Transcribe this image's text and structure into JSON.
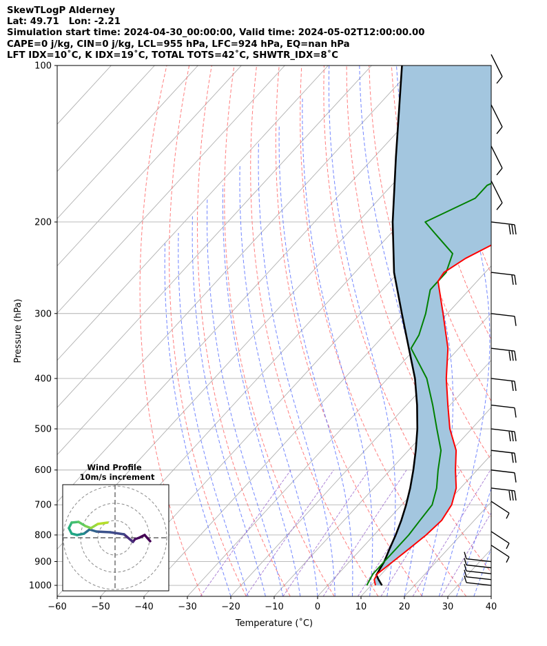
{
  "header": {
    "line1": "SkewTLogP Alderney",
    "line2": "Lat: 49.71   Lon: -2.21",
    "line3": "Simulation start time: 2024-04-30_00:00:00, Valid time: 2024-05-02T12:00:00.00",
    "line4": "CAPE=0 j/kg, CIN=0 j/kg, LCL=955 hPa, LFC=924 hPa, EQ=nan hPa",
    "line5": "LFT IDX=10˚C, K IDX=19˚C, TOTAL TOTS=42˚C, SHWTR_IDX=8˚C"
  },
  "chart_data": {
    "type": "line",
    "title": "SkewTLogP Alderney",
    "xlabel": "Temperature (˚C)",
    "ylabel": "Pressure (hPa)",
    "xlim": [
      -60,
      40
    ],
    "ylim": [
      1050,
      100
    ],
    "y_scale": "log",
    "skew": "skew-T log-P",
    "x_ticks": [
      "−60",
      "−50",
      "−40",
      "−30",
      "−20",
      "−10",
      "0",
      "10",
      "20",
      "30",
      "40"
    ],
    "x_tick_values": [
      -60,
      -50,
      -40,
      -30,
      -20,
      -10,
      0,
      10,
      20,
      30,
      40
    ],
    "y_ticks": [
      "100",
      "200",
      "300",
      "400",
      "500",
      "600",
      "700",
      "800",
      "900",
      "1000"
    ],
    "y_tick_values": [
      100,
      200,
      300,
      400,
      500,
      600,
      700,
      800,
      900,
      1000
    ],
    "grid": true,
    "colors": {
      "temperature": "#ff0000",
      "dewpoint": "#008000",
      "parcel": "#000000",
      "fill": "#a3c6df",
      "dry_adiabat": "#ff6666",
      "moist_adiabat": "#4d66ff",
      "mixing_ratio": "#9966cc",
      "isotherm": "#b0b0b0"
    },
    "series": [
      {
        "type": "temperature",
        "p": [
          1000,
          975,
          950,
          925,
          900,
          850,
          800,
          750,
          700,
          650,
          600,
          550,
          500,
          450,
          400,
          350,
          300,
          260,
          250,
          235,
          220,
          200,
          180,
          160,
          140,
          120,
          100
        ],
        "t": [
          11,
          9.5,
          9,
          9.5,
          10,
          11,
          12,
          12.5,
          11.5,
          9,
          5,
          1,
          -5,
          -10.5,
          -16.5,
          -22.5,
          -31,
          -39,
          -39.5,
          -37.5,
          -34,
          -33,
          -27,
          -21,
          -14,
          -8,
          0
        ]
      },
      {
        "type": "dewpoint",
        "p": [
          1000,
          975,
          950,
          925,
          900,
          850,
          800,
          750,
          700,
          650,
          600,
          550,
          500,
          450,
          400,
          350,
          330,
          300,
          270,
          250,
          230,
          210,
          200,
          180,
          170,
          150,
          120,
          100
        ],
        "t": [
          9,
          8.5,
          8,
          8,
          8,
          8,
          8,
          7.5,
          7,
          4.5,
          1,
          -2.5,
          -8,
          -14,
          -21,
          -31,
          -32,
          -35,
          -39,
          -39,
          -41.5,
          -50,
          -54.5,
          -48,
          -48,
          -39.5,
          -24,
          -8
        ]
      },
      {
        "type": "parcel",
        "p": [
          1000,
          975,
          955,
          900,
          850,
          800,
          750,
          700,
          650,
          600,
          550,
          500,
          450,
          400,
          350,
          300,
          250,
          200,
          150,
          100
        ],
        "t": [
          12.5,
          10.5,
          9,
          8,
          6.5,
          5,
          3.2,
          1,
          -1.6,
          -4.7,
          -8.3,
          -12.5,
          -17.6,
          -23.7,
          -31.5,
          -40.5,
          -51,
          -62,
          -75,
          -93
        ]
      }
    ],
    "wind_barbs_p": [
      1000,
      975,
      950,
      925,
      900,
      850,
      800,
      700,
      650,
      600,
      550,
      500,
      450,
      400,
      350,
      300,
      250,
      200,
      175,
      150,
      125,
      100
    ],
    "inset": {
      "title": "Wind Profile",
      "subtitle": "10m/s increment"
    }
  }
}
